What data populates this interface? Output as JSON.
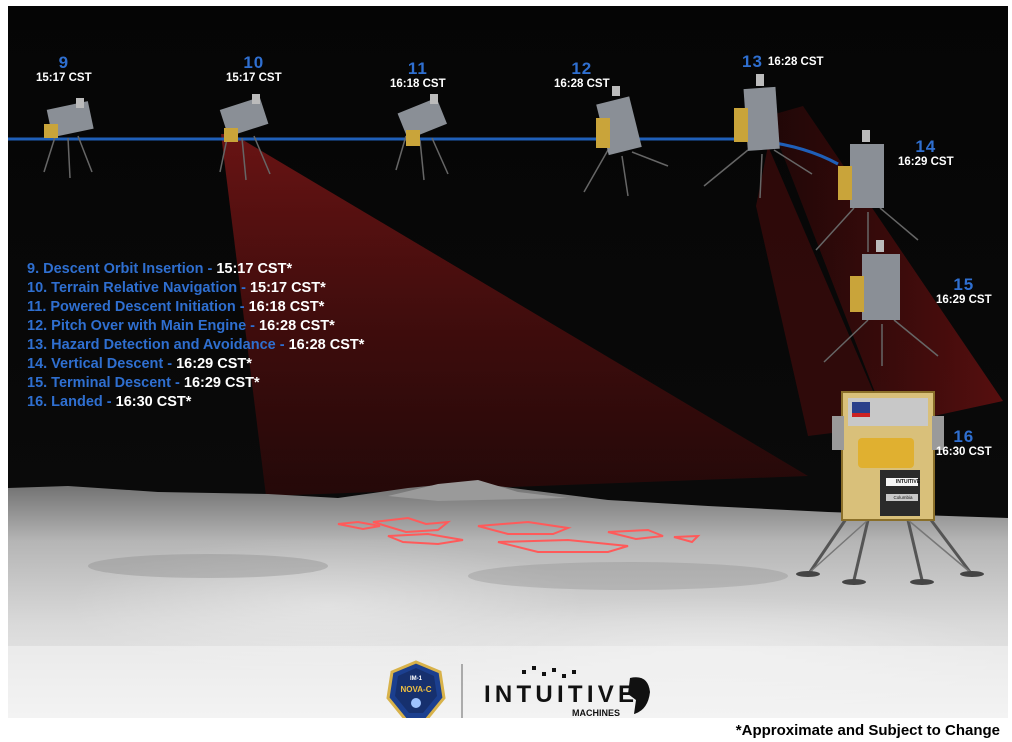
{
  "phases": [
    {
      "number": "9",
      "time": "15:17 CST"
    },
    {
      "number": "10",
      "time": "15:17 CST"
    },
    {
      "number": "11",
      "time": "16:18 CST"
    },
    {
      "number": "12",
      "time": "16:28 CST"
    },
    {
      "number": "13",
      "time": "16:28 CST"
    },
    {
      "number": "14",
      "time": "16:29 CST"
    },
    {
      "number": "15",
      "time": "16:29 CST"
    },
    {
      "number": "16",
      "time": "16:30 CST"
    }
  ],
  "legend": [
    {
      "label": "9. Descent Orbit Insertion - ",
      "time": "15:17 CST*"
    },
    {
      "label": "10. Terrain Relative Navigation - ",
      "time": "15:17 CST*"
    },
    {
      "label": "11. Powered Descent Initiation - ",
      "time": "16:18 CST*"
    },
    {
      "label": "12. Pitch Over with Main Engine - ",
      "time": "16:28 CST*"
    },
    {
      "label": "13. Hazard Detection and Avoidance - ",
      "time": "16:28 CST*"
    },
    {
      "label": "14. Vertical Descent -  ",
      "time": "16:29 CST*"
    },
    {
      "label": "15. Terminal Descent - ",
      "time": "16:29 CST*"
    },
    {
      "label": "16. Landed - ",
      "time": "16:30 CST*"
    }
  ],
  "logos": {
    "mission_patch_top": "IM-1",
    "mission_patch_main": "NOVA-C",
    "brand_main": "INTUITIVE",
    "brand_sub": "MACHINES"
  },
  "lander_marks": {
    "brand": "INTUITIVE",
    "sponsor": "Columbia"
  },
  "footnote": "*Approximate and Subject to Change",
  "colors": {
    "accent_blue": "#2f6fd0",
    "sensor_red": "#8a1a1a",
    "background": "#000000"
  }
}
